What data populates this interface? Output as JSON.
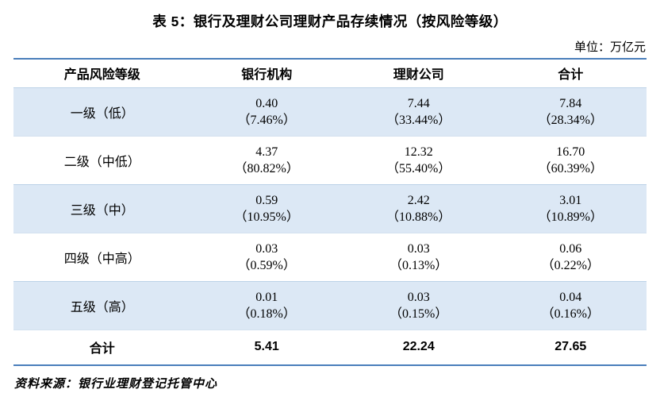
{
  "page": {
    "title": "表 5：银行及理财公司理财产品存续情况（按风险等级）",
    "unit_label": "单位：万亿元",
    "source_note": "资料来源：银行业理财登记托管中心"
  },
  "table": {
    "columns": [
      "产品风险等级",
      "银行机构",
      "理财公司",
      "合计"
    ],
    "rows": [
      {
        "label": "一级（低）",
        "cells": [
          {
            "value": "0.40",
            "pct": "（7.46%）"
          },
          {
            "value": "7.44",
            "pct": "（33.44%）"
          },
          {
            "value": "7.84",
            "pct": "（28.34%）"
          }
        ]
      },
      {
        "label": "二级（中低）",
        "cells": [
          {
            "value": "4.37",
            "pct": "（80.82%）"
          },
          {
            "value": "12.32",
            "pct": "（55.40%）"
          },
          {
            "value": "16.70",
            "pct": "（60.39%）"
          }
        ]
      },
      {
        "label": "三级（中）",
        "cells": [
          {
            "value": "0.59",
            "pct": "（10.95%）"
          },
          {
            "value": "2.42",
            "pct": "（10.88%）"
          },
          {
            "value": "3.01",
            "pct": "（10.89%）"
          }
        ]
      },
      {
        "label": "四级（中高）",
        "cells": [
          {
            "value": "0.03",
            "pct": "（0.59%）"
          },
          {
            "value": "0.03",
            "pct": "（0.13%）"
          },
          {
            "value": "0.06",
            "pct": "（0.22%）"
          }
        ]
      },
      {
        "label": "五级（高）",
        "cells": [
          {
            "value": "0.01",
            "pct": "（0.18%）"
          },
          {
            "value": "0.03",
            "pct": "（0.15%）"
          },
          {
            "value": "0.04",
            "pct": "（0.16%）"
          }
        ]
      }
    ],
    "total_row": {
      "label": "合计",
      "values": [
        "5.41",
        "22.24",
        "27.65"
      ]
    }
  },
  "colors": {
    "accent_line": "#4a7ebb",
    "row_shade": "#dce8f5"
  }
}
